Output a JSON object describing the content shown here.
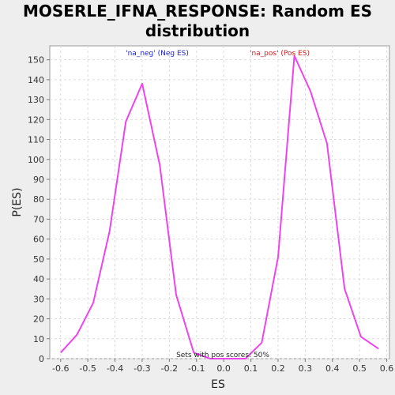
{
  "chart_data": {
    "type": "line",
    "title_line1": "MOSERLE_IFNA_RESPONSE: Random ES",
    "title_line2": "distribution",
    "xlabel": "ES",
    "ylabel": "P(ES)",
    "xlim": [
      -0.64,
      0.61
    ],
    "ylim": [
      0,
      157
    ],
    "x_ticks": [
      -0.6,
      -0.5,
      -0.4,
      -0.3,
      -0.2,
      -0.1,
      0.0,
      0.1,
      0.2,
      0.3,
      0.4,
      0.5,
      0.6
    ],
    "x_tick_labels": [
      "-0.6",
      "-0.5",
      "-0.4",
      "-0.3",
      "-0.2",
      "-0.1",
      "0.0",
      "0.1",
      "0.2",
      "0.3",
      "0.4",
      "0.5",
      "0.6"
    ],
    "y_ticks": [
      0,
      10,
      20,
      30,
      40,
      50,
      60,
      70,
      80,
      90,
      100,
      110,
      120,
      130,
      140,
      150
    ],
    "y_tick_labels": [
      "0",
      "10",
      "20",
      "30",
      "40",
      "50",
      "60",
      "70",
      "80",
      "90",
      "100",
      "110",
      "120",
      "130",
      "140",
      "150"
    ],
    "grid": true,
    "line_color": "#ee44ee",
    "series": [
      {
        "name": "",
        "x": [
          -0.6,
          -0.54,
          -0.48,
          -0.42,
          -0.36,
          -0.3,
          -0.235,
          -0.175,
          -0.11,
          -0.05,
          0.015,
          0.08,
          0.14,
          0.2,
          0.26,
          0.32,
          0.38,
          0.445,
          0.505,
          0.57
        ],
        "y": [
          3,
          12,
          28,
          64,
          119,
          138,
          97,
          32,
          3,
          0,
          0,
          0,
          8,
          51,
          152,
          134,
          108,
          35,
          11,
          5
        ]
      }
    ],
    "annotations": {
      "neg_label": "'na_neg' (Neg ES)",
      "neg_color": "#2222cc",
      "pos_label": "'na_pos' (Pos ES)",
      "pos_color": "#cc2222",
      "note": "Sets with pos scores: 50%"
    }
  }
}
